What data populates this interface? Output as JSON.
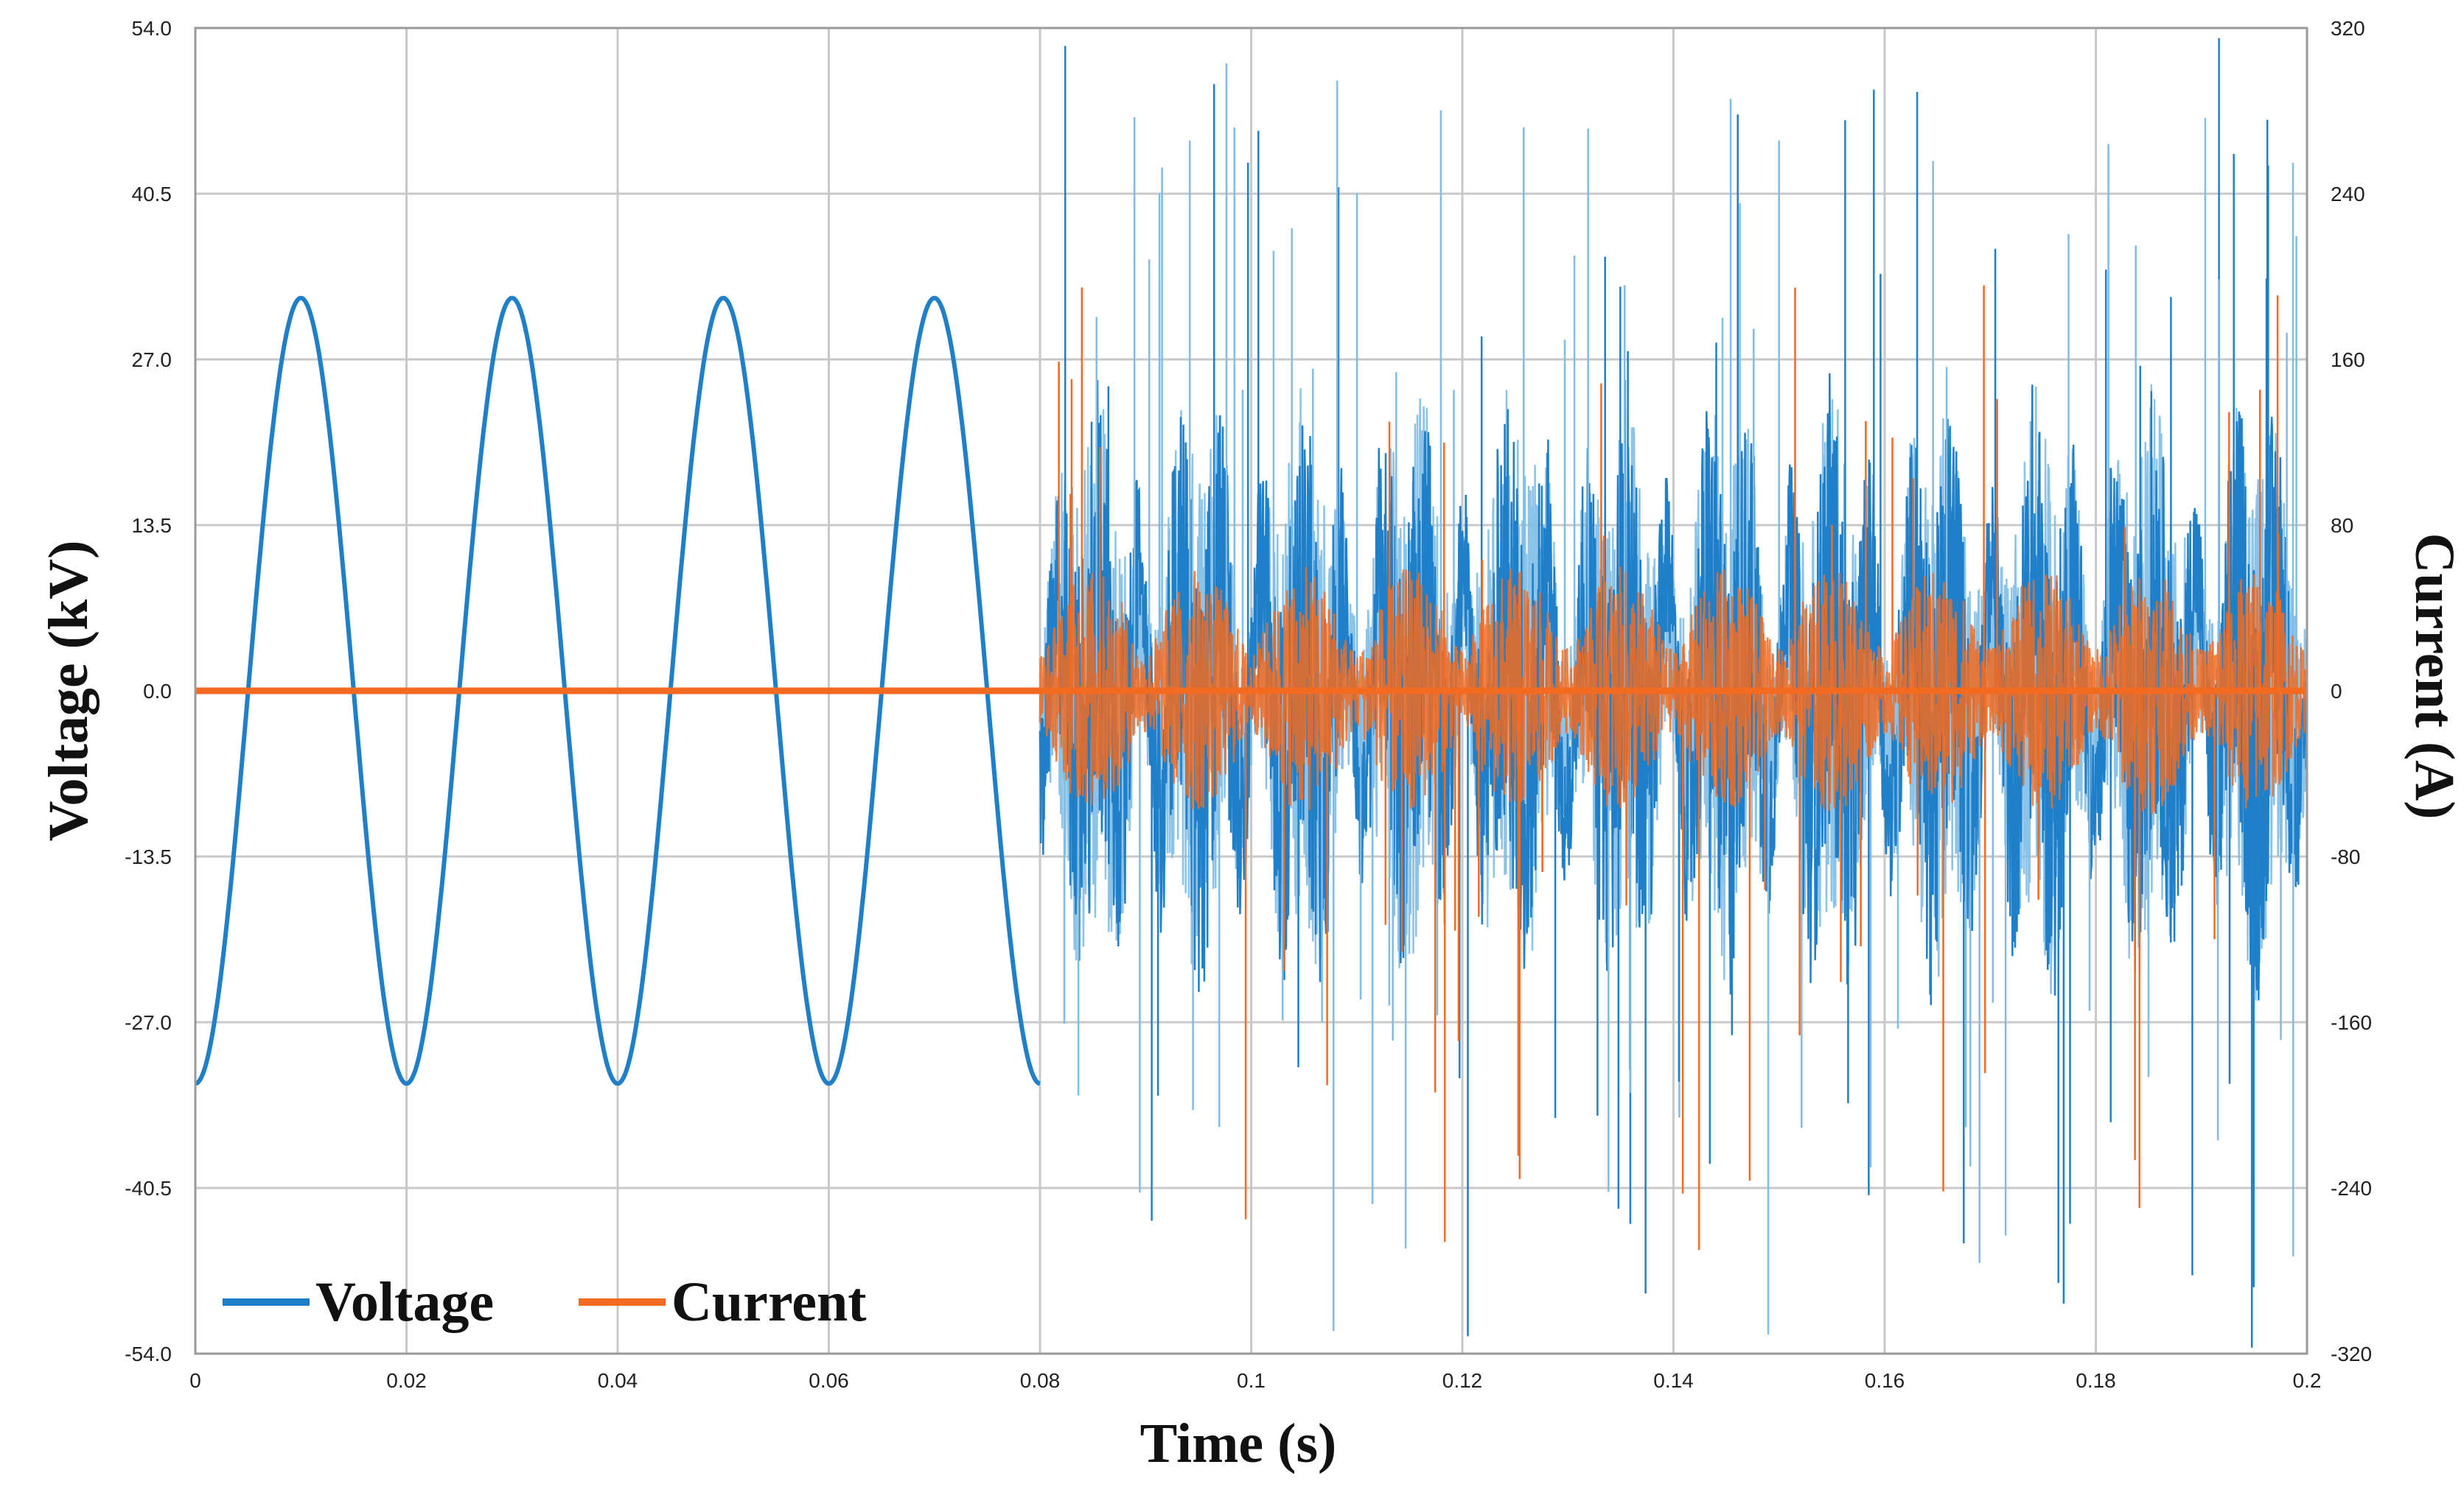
{
  "chart_data": {
    "type": "line",
    "title": "",
    "xlabel": "Time (s)",
    "ylabel": "Voltage (kV)",
    "y2label": "Current (A)",
    "xlim": [
      0,
      0.2
    ],
    "ylim": [
      -54,
      54
    ],
    "y2lim": [
      -320,
      320
    ],
    "x_ticks": [
      "0",
      "0.02",
      "0.04",
      "0.06",
      "0.08",
      "0.1",
      "0.12",
      "0.14",
      "0.16",
      "0.18",
      "0.2"
    ],
    "y_ticks": [
      "54.0",
      "40.5",
      "27.0",
      "13.5",
      "0.0",
      "-13.5",
      "-27.0",
      "-40.5",
      "-54.0"
    ],
    "y2_ticks": [
      "320",
      "240",
      "160",
      "80",
      "0",
      "-80",
      "-160",
      "-240",
      "-320"
    ],
    "grid": true,
    "legend_position": "bottom-left",
    "series": [
      {
        "name": "Voltage",
        "color": "#1f7fc9",
        "axis": "left",
        "pre_fault": {
          "shape": "sinusoid",
          "frequency_hz": 50,
          "amplitude_kv": 32,
          "x_start": 0,
          "x_end": 0.08,
          "peaks": [
            [
              0.01,
              32
            ],
            [
              0.03,
              32
            ],
            [
              0.05,
              32
            ],
            [
              0.07,
              32
            ]
          ],
          "troughs": [
            [
              0.0,
              -32
            ],
            [
              0.02,
              -32
            ],
            [
              0.04,
              -32
            ],
            [
              0.06,
              -32
            ],
            [
              0.08,
              -32
            ]
          ]
        },
        "post_fault": {
          "shape": "noisy oscillating bursts",
          "x_start": 0.08,
          "x_end": 0.2,
          "typical_range_kv": [
            -20,
            20
          ],
          "max_spike_kv": 54,
          "min_spike_kv": -54
        }
      },
      {
        "name": "Current",
        "color": "#f26b21",
        "axis": "right",
        "pre_fault": {
          "shape": "flat",
          "value_a": 0,
          "x_start": 0,
          "x_end": 0.08
        },
        "post_fault": {
          "shape": "noisy bursts around zero",
          "x_start": 0.08,
          "x_end": 0.2,
          "typical_range_a": [
            -60,
            60
          ],
          "max_spike_a": 210,
          "min_spike_a": -270
        }
      }
    ]
  }
}
